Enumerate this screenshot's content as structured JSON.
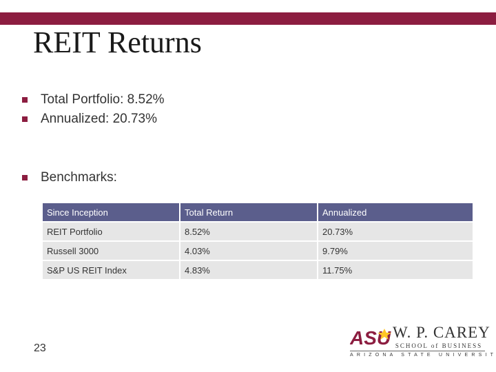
{
  "colors": {
    "accent": "#8c1d40",
    "table_header": "#5b5e8c",
    "table_row": "#e6e6e6"
  },
  "slide": {
    "title": "REIT Returns",
    "bullets": [
      "Total Portfolio: 8.52%",
      "Annualized: 20.73%",
      "Benchmarks:"
    ],
    "page_number": "23"
  },
  "table": {
    "headers": [
      "Since Inception",
      "Total Return",
      "Annualized"
    ],
    "rows": [
      [
        "REIT Portfolio",
        "8.52%",
        "20.73%"
      ],
      [
        "Russell 3000",
        "4.03%",
        "9.79%"
      ],
      [
        "S&P US REIT Index",
        "4.83%",
        "11.75%"
      ]
    ]
  },
  "logo": {
    "asu": "ASU",
    "name": "W. P. CAREY",
    "school": "SCHOOL of BUSINESS",
    "university": "ARIZONA STATE UNIVERSITY"
  }
}
